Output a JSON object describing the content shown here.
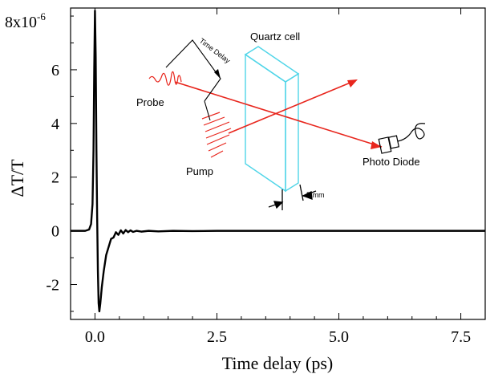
{
  "chart_data": {
    "type": "line",
    "title": "",
    "xlabel": "Time delay (ps)",
    "ylabel": "ΔT/T",
    "y_multiplier_label": "8x10",
    "y_exponent": "-6",
    "xlim": [
      -0.5,
      8.0
    ],
    "ylim": [
      -3.3,
      8.3
    ],
    "x_ticks": [
      0.0,
      2.5,
      5.0,
      7.5
    ],
    "x_tick_labels": [
      "0.0",
      "2.5",
      "5.0",
      "7.5"
    ],
    "y_ticks": [
      -2,
      0,
      2,
      4,
      6
    ],
    "y_tick_labels": [
      "-2",
      "0",
      "2",
      "4",
      "6"
    ],
    "grid": false,
    "series": [
      {
        "color": "#000000",
        "x": [
          -0.5,
          -0.2,
          -0.12,
          -0.08,
          -0.05,
          -0.03,
          -0.015,
          0.0,
          0.015,
          0.03,
          0.045,
          0.06,
          0.075,
          0.09,
          0.11,
          0.14,
          0.18,
          0.23,
          0.28,
          0.33,
          0.38,
          0.43,
          0.48,
          0.53,
          0.58,
          0.63,
          0.68,
          0.73,
          0.78,
          0.85,
          0.95,
          1.1,
          1.3,
          1.6,
          2.0,
          2.5,
          3.0,
          4.0,
          5.0,
          6.0,
          7.0,
          8.0
        ],
        "y": [
          0.0,
          0.0,
          0.05,
          0.25,
          1.0,
          3.0,
          6.0,
          8.2,
          6.5,
          3.0,
          0.5,
          -1.5,
          -2.7,
          -3.0,
          -2.7,
          -2.1,
          -1.5,
          -0.9,
          -0.6,
          -0.3,
          -0.25,
          -0.05,
          -0.15,
          0.02,
          -0.1,
          0.03,
          -0.05,
          0.02,
          -0.04,
          0.0,
          -0.03,
          0.0,
          -0.02,
          0.0,
          -0.01,
          0.0,
          0.0,
          0.0,
          0.0,
          0.0,
          0.0,
          0.0
        ]
      }
    ],
    "inset": {
      "labels": {
        "quartz_cell": "Quartz cell",
        "time_delay": "Time Delay",
        "probe": "Probe",
        "pump": "Pump",
        "photo_diode": "Photo Diode",
        "thickness": "5 mm"
      },
      "colors": {
        "beam": "#e8261d",
        "cell": "#4fd5e8",
        "line": "#000000"
      }
    }
  }
}
